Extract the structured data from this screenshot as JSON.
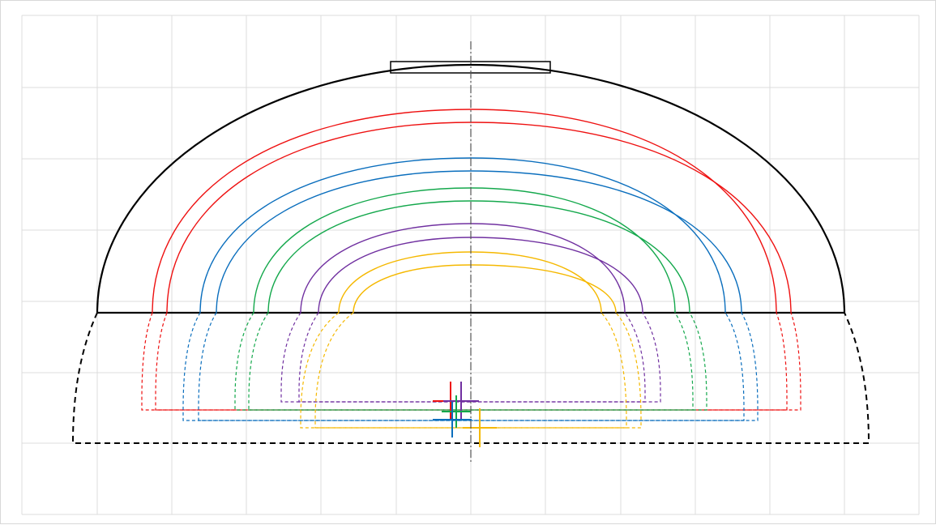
{
  "diagram": {
    "background": "#ffffff",
    "grid_color": "#dcdcdc",
    "outline_color": "#000000",
    "axis_color": "#555555",
    "curves": [
      {
        "name": "red",
        "color": "#ee1111"
      },
      {
        "name": "blue",
        "color": "#0a6ebd"
      },
      {
        "name": "green",
        "color": "#14a84c"
      },
      {
        "name": "purple",
        "color": "#7030a0"
      },
      {
        "name": "yellow",
        "color": "#f5b800"
      }
    ]
  }
}
